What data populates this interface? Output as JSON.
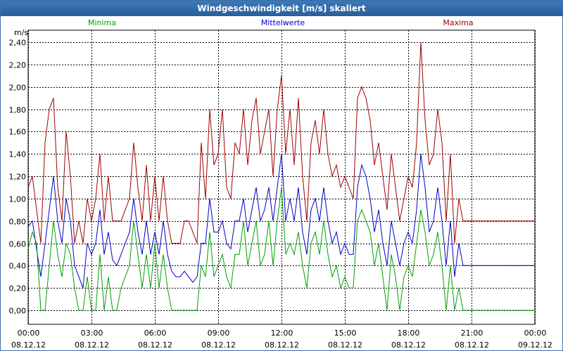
{
  "window": {
    "title": "Windgeschwindigkeit [m/s] skaliert"
  },
  "chart_data": {
    "type": "line",
    "title": "Windgeschwindigkeit [m/s] skaliert",
    "ylabel": "m/s",
    "xlabel": "",
    "ylim": [
      0,
      2.4
    ],
    "yticks": [
      "0,00",
      "0,20",
      "0,40",
      "0,60",
      "0,80",
      "1,00",
      "1,20",
      "1,40",
      "1,60",
      "1,80",
      "2,00",
      "2,20",
      "2,40"
    ],
    "xlim_hours": [
      0,
      24
    ],
    "xticks": [
      {
        "time": "00:00",
        "date": "08.12.12"
      },
      {
        "time": "03:00",
        "date": "08.12.12"
      },
      {
        "time": "06:00",
        "date": "08.12.12"
      },
      {
        "time": "09:00",
        "date": "08.12.12"
      },
      {
        "time": "12:00",
        "date": "08.12.12"
      },
      {
        "time": "15:00",
        "date": "08.12.12"
      },
      {
        "time": "18:00",
        "date": "08.12.12"
      },
      {
        "time": "21:00",
        "date": "08.12.12"
      },
      {
        "time": "00:00",
        "date": "09.12.12"
      }
    ],
    "legend": [
      "Minima",
      "Mittelwerte",
      "Maxima"
    ],
    "grid": true,
    "series": [
      {
        "name": "Maxima",
        "color": "#a00000",
        "x": [
          0.0,
          0.2,
          0.4,
          0.6,
          0.8,
          1.0,
          1.2,
          1.4,
          1.6,
          1.8,
          2.0,
          2.2,
          2.4,
          2.6,
          2.8,
          3.0,
          3.2,
          3.4,
          3.6,
          3.8,
          4.0,
          4.2,
          4.4,
          4.6,
          4.8,
          5.0,
          5.2,
          5.4,
          5.6,
          5.8,
          6.0,
          6.2,
          6.4,
          6.6,
          6.8,
          7.0,
          7.2,
          7.4,
          7.6,
          7.8,
          8.0,
          8.2,
          8.4,
          8.6,
          8.8,
          9.0,
          9.2,
          9.4,
          9.6,
          9.8,
          10.0,
          10.2,
          10.4,
          10.6,
          10.8,
          11.0,
          11.2,
          11.4,
          11.6,
          11.8,
          12.0,
          12.2,
          12.4,
          12.6,
          12.8,
          13.0,
          13.2,
          13.4,
          13.6,
          13.8,
          14.0,
          14.2,
          14.4,
          14.6,
          14.8,
          15.0,
          15.2,
          15.4,
          15.6,
          15.8,
          16.0,
          16.2,
          16.4,
          16.6,
          16.8,
          17.0,
          17.2,
          17.4,
          17.6,
          17.8,
          18.0,
          18.2,
          18.4,
          18.6,
          18.8,
          19.0,
          19.2,
          19.4,
          19.6,
          19.8,
          20.0,
          20.2,
          20.4,
          20.6,
          20.8,
          21.0,
          21.2,
          21.4,
          21.6,
          21.8,
          22.0,
          22.2,
          22.4,
          22.6,
          22.8,
          23.0,
          23.2,
          23.4,
          23.6,
          23.8,
          24.0
        ],
        "values": [
          1.1,
          1.2,
          0.9,
          0.6,
          1.5,
          1.8,
          1.9,
          1.1,
          0.8,
          1.6,
          1.2,
          0.6,
          0.8,
          0.6,
          1.0,
          0.8,
          1.0,
          1.4,
          0.8,
          1.2,
          0.8,
          0.8,
          0.8,
          0.9,
          1.0,
          1.5,
          1.1,
          0.8,
          1.3,
          0.8,
          1.2,
          0.8,
          1.2,
          0.8,
          0.6,
          0.6,
          0.6,
          0.8,
          0.8,
          0.7,
          0.6,
          1.5,
          1.0,
          1.8,
          1.3,
          1.4,
          1.8,
          1.1,
          1.0,
          1.5,
          1.4,
          1.8,
          1.3,
          1.7,
          1.9,
          1.4,
          1.6,
          1.8,
          1.2,
          1.8,
          2.1,
          1.4,
          1.8,
          1.3,
          1.9,
          1.2,
          0.8,
          1.5,
          1.7,
          1.4,
          1.8,
          1.4,
          1.2,
          1.3,
          1.1,
          1.2,
          1.1,
          1.0,
          1.9,
          2.0,
          1.9,
          1.7,
          1.3,
          1.5,
          1.2,
          0.9,
          1.4,
          1.1,
          0.8,
          1.0,
          1.2,
          1.1,
          1.5,
          2.4,
          1.7,
          1.3,
          1.4,
          1.8,
          1.5,
          0.8,
          1.4,
          0.6,
          1.0,
          0.8,
          0.8,
          0.8,
          0.8,
          0.8,
          0.8,
          0.8,
          0.8,
          0.8,
          0.8,
          0.8,
          0.8,
          0.8,
          0.8,
          0.8,
          0.8,
          0.8,
          0.8
        ]
      },
      {
        "name": "Mittelwerte",
        "color": "#0000c8",
        "x": [
          0.0,
          0.2,
          0.4,
          0.6,
          0.8,
          1.0,
          1.2,
          1.4,
          1.6,
          1.8,
          2.0,
          2.2,
          2.4,
          2.6,
          2.8,
          3.0,
          3.2,
          3.4,
          3.6,
          3.8,
          4.0,
          4.2,
          4.4,
          4.6,
          4.8,
          5.0,
          5.2,
          5.4,
          5.6,
          5.8,
          6.0,
          6.2,
          6.4,
          6.6,
          6.8,
          7.0,
          7.2,
          7.4,
          7.6,
          7.8,
          8.0,
          8.2,
          8.4,
          8.6,
          8.8,
          9.0,
          9.2,
          9.4,
          9.6,
          9.8,
          10.0,
          10.2,
          10.4,
          10.6,
          10.8,
          11.0,
          11.2,
          11.4,
          11.6,
          11.8,
          12.0,
          12.2,
          12.4,
          12.6,
          12.8,
          13.0,
          13.2,
          13.4,
          13.6,
          13.8,
          14.0,
          14.2,
          14.4,
          14.6,
          14.8,
          15.0,
          15.2,
          15.4,
          15.6,
          15.8,
          16.0,
          16.2,
          16.4,
          16.6,
          16.8,
          17.0,
          17.2,
          17.4,
          17.6,
          17.8,
          18.0,
          18.2,
          18.4,
          18.6,
          18.8,
          19.0,
          19.2,
          19.4,
          19.6,
          19.8,
          20.0,
          20.2,
          20.4,
          20.6,
          20.8,
          21.0,
          21.2,
          21.4,
          21.6,
          21.8,
          22.0,
          22.2,
          22.4,
          22.6,
          22.8,
          23.0,
          23.2,
          23.4,
          23.6,
          23.8,
          24.0
        ],
        "values": [
          0.75,
          0.8,
          0.55,
          0.3,
          0.6,
          0.9,
          1.2,
          0.8,
          0.6,
          1.0,
          0.8,
          0.4,
          0.3,
          0.2,
          0.6,
          0.5,
          0.6,
          0.9,
          0.5,
          0.7,
          0.45,
          0.4,
          0.5,
          0.6,
          0.7,
          1.0,
          0.7,
          0.5,
          0.8,
          0.5,
          0.7,
          0.5,
          0.8,
          0.5,
          0.35,
          0.3,
          0.3,
          0.35,
          0.3,
          0.25,
          0.3,
          0.6,
          0.6,
          1.0,
          0.7,
          0.7,
          0.8,
          0.6,
          0.55,
          0.8,
          0.8,
          1.0,
          0.7,
          0.9,
          1.1,
          0.8,
          0.9,
          1.1,
          0.8,
          1.1,
          1.4,
          0.8,
          1.0,
          0.8,
          1.1,
          0.7,
          0.5,
          0.9,
          1.0,
          0.8,
          1.1,
          0.8,
          0.6,
          0.7,
          0.5,
          0.6,
          0.5,
          0.5,
          1.1,
          1.3,
          1.2,
          1.0,
          0.7,
          0.9,
          0.6,
          0.4,
          0.8,
          0.6,
          0.4,
          0.6,
          0.7,
          0.6,
          0.9,
          1.4,
          1.1,
          0.7,
          0.8,
          1.1,
          0.8,
          0.4,
          0.8,
          0.3,
          0.6,
          0.4,
          0.4,
          0.4,
          0.4,
          0.4,
          0.4,
          0.4,
          0.4,
          0.4,
          0.4,
          0.4,
          0.4,
          0.4,
          0.4,
          0.4,
          0.4,
          0.4,
          0.4
        ]
      },
      {
        "name": "Minima",
        "color": "#00a000",
        "x": [
          0.0,
          0.2,
          0.4,
          0.6,
          0.8,
          1.0,
          1.2,
          1.4,
          1.6,
          1.8,
          2.0,
          2.2,
          2.4,
          2.6,
          2.8,
          3.0,
          3.2,
          3.4,
          3.6,
          3.8,
          4.0,
          4.2,
          4.4,
          4.6,
          4.8,
          5.0,
          5.2,
          5.4,
          5.6,
          5.8,
          6.0,
          6.2,
          6.4,
          6.6,
          6.8,
          7.0,
          7.2,
          7.4,
          7.6,
          7.8,
          8.0,
          8.2,
          8.4,
          8.6,
          8.8,
          9.0,
          9.2,
          9.4,
          9.6,
          9.8,
          10.0,
          10.2,
          10.4,
          10.6,
          10.8,
          11.0,
          11.2,
          11.4,
          11.6,
          11.8,
          12.0,
          12.2,
          12.4,
          12.6,
          12.8,
          13.0,
          13.2,
          13.4,
          13.6,
          13.8,
          14.0,
          14.2,
          14.4,
          14.6,
          14.8,
          15.0,
          15.2,
          15.4,
          15.6,
          15.8,
          16.0,
          16.2,
          16.4,
          16.6,
          16.8,
          17.0,
          17.2,
          17.4,
          17.6,
          17.8,
          18.0,
          18.2,
          18.4,
          18.6,
          18.8,
          19.0,
          19.2,
          19.4,
          19.6,
          19.8,
          20.0,
          20.2,
          20.4,
          20.6,
          20.8,
          21.0,
          21.2,
          21.4,
          21.6,
          21.8,
          22.0,
          22.2,
          22.4,
          22.6,
          22.8,
          23.0,
          23.2,
          23.4,
          23.6,
          23.8,
          24.0
        ],
        "values": [
          0.55,
          0.7,
          0.6,
          0.0,
          0.0,
          0.4,
          0.8,
          0.5,
          0.3,
          0.6,
          0.5,
          0.2,
          0.0,
          0.0,
          0.3,
          0.0,
          0.0,
          0.5,
          0.0,
          0.3,
          0.0,
          0.0,
          0.2,
          0.3,
          0.4,
          0.8,
          0.5,
          0.2,
          0.5,
          0.2,
          0.6,
          0.2,
          0.5,
          0.2,
          0.0,
          0.0,
          0.0,
          0.0,
          0.0,
          0.0,
          0.0,
          0.4,
          0.3,
          0.7,
          0.3,
          0.4,
          0.5,
          0.3,
          0.2,
          0.5,
          0.5,
          0.8,
          0.4,
          0.6,
          0.8,
          0.4,
          0.5,
          0.8,
          0.4,
          0.8,
          1.1,
          0.5,
          0.6,
          0.5,
          0.7,
          0.4,
          0.2,
          0.6,
          0.7,
          0.5,
          0.8,
          0.5,
          0.3,
          0.4,
          0.2,
          0.3,
          0.2,
          0.2,
          0.8,
          0.9,
          0.8,
          0.7,
          0.4,
          0.6,
          0.3,
          0.0,
          0.5,
          0.3,
          0.0,
          0.3,
          0.4,
          0.3,
          0.6,
          0.9,
          0.7,
          0.4,
          0.5,
          0.7,
          0.4,
          0.0,
          0.4,
          0.0,
          0.2,
          0.0,
          0.0,
          0.0,
          0.0,
          0.0,
          0.0,
          0.0,
          0.0,
          0.0,
          0.0,
          0.0,
          0.0,
          0.0,
          0.0,
          0.0,
          0.0,
          0.0,
          0.0
        ]
      }
    ]
  }
}
